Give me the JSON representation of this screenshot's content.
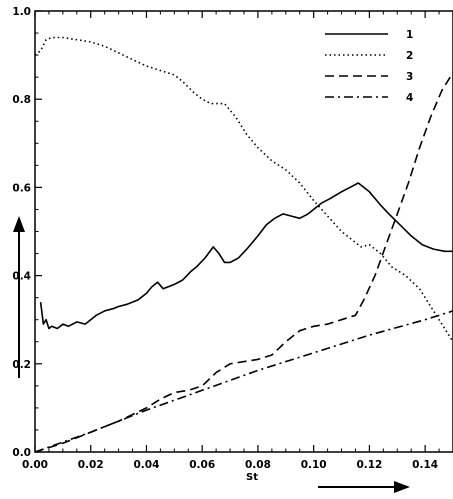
{
  "chart_data": {
    "type": "line",
    "title": "",
    "xlabel": "St",
    "ylabel": "",
    "xlim": [
      0.0,
      0.15
    ],
    "ylim": [
      0.0,
      1.0
    ],
    "x_ticks": [
      "0.00",
      "0.02",
      "0.04",
      "0.06",
      "0.08",
      "0.10",
      "0.12",
      "0.14"
    ],
    "y_ticks": [
      "0.0",
      "0.2",
      "0.4",
      "0.6",
      "0.8",
      "1.0"
    ],
    "legend_position": "top-right",
    "grid": false,
    "series": [
      {
        "name": "1",
        "style": "solid",
        "color": "#000000",
        "points": [
          [
            0.002,
            0.34
          ],
          [
            0.003,
            0.29
          ],
          [
            0.004,
            0.3
          ],
          [
            0.005,
            0.28
          ],
          [
            0.006,
            0.285
          ],
          [
            0.008,
            0.28
          ],
          [
            0.01,
            0.29
          ],
          [
            0.012,
            0.285
          ],
          [
            0.015,
            0.295
          ],
          [
            0.018,
            0.29
          ],
          [
            0.02,
            0.3
          ],
          [
            0.022,
            0.31
          ],
          [
            0.025,
            0.32
          ],
          [
            0.028,
            0.325
          ],
          [
            0.03,
            0.33
          ],
          [
            0.033,
            0.335
          ],
          [
            0.035,
            0.34
          ],
          [
            0.037,
            0.345
          ],
          [
            0.04,
            0.36
          ],
          [
            0.042,
            0.375
          ],
          [
            0.044,
            0.385
          ],
          [
            0.046,
            0.37
          ],
          [
            0.05,
            0.38
          ],
          [
            0.053,
            0.39
          ],
          [
            0.056,
            0.41
          ],
          [
            0.058,
            0.42
          ],
          [
            0.061,
            0.44
          ],
          [
            0.064,
            0.465
          ],
          [
            0.066,
            0.45
          ],
          [
            0.068,
            0.43
          ],
          [
            0.07,
            0.43
          ],
          [
            0.073,
            0.44
          ],
          [
            0.076,
            0.46
          ],
          [
            0.08,
            0.49
          ],
          [
            0.083,
            0.515
          ],
          [
            0.086,
            0.53
          ],
          [
            0.089,
            0.54
          ],
          [
            0.092,
            0.535
          ],
          [
            0.095,
            0.53
          ],
          [
            0.098,
            0.54
          ],
          [
            0.1,
            0.55
          ],
          [
            0.103,
            0.565
          ],
          [
            0.106,
            0.575
          ],
          [
            0.11,
            0.59
          ],
          [
            0.113,
            0.6
          ],
          [
            0.116,
            0.61
          ],
          [
            0.12,
            0.59
          ],
          [
            0.124,
            0.56
          ],
          [
            0.127,
            0.54
          ],
          [
            0.131,
            0.515
          ],
          [
            0.135,
            0.49
          ],
          [
            0.139,
            0.47
          ],
          [
            0.143,
            0.46
          ],
          [
            0.147,
            0.455
          ],
          [
            0.15,
            0.455
          ]
        ]
      },
      {
        "name": "2",
        "style": "dotted",
        "color": "#000000",
        "points": [
          [
            0.0,
            0.9
          ],
          [
            0.002,
            0.91
          ],
          [
            0.004,
            0.935
          ],
          [
            0.006,
            0.94
          ],
          [
            0.01,
            0.94
          ],
          [
            0.015,
            0.935
          ],
          [
            0.02,
            0.93
          ],
          [
            0.025,
            0.92
          ],
          [
            0.03,
            0.905
          ],
          [
            0.035,
            0.89
          ],
          [
            0.04,
            0.875
          ],
          [
            0.045,
            0.865
          ],
          [
            0.05,
            0.855
          ],
          [
            0.053,
            0.84
          ],
          [
            0.057,
            0.815
          ],
          [
            0.06,
            0.8
          ],
          [
            0.063,
            0.79
          ],
          [
            0.068,
            0.79
          ],
          [
            0.072,
            0.76
          ],
          [
            0.076,
            0.72
          ],
          [
            0.08,
            0.69
          ],
          [
            0.085,
            0.66
          ],
          [
            0.09,
            0.64
          ],
          [
            0.095,
            0.61
          ],
          [
            0.1,
            0.57
          ],
          [
            0.105,
            0.535
          ],
          [
            0.11,
            0.5
          ],
          [
            0.114,
            0.48
          ],
          [
            0.117,
            0.465
          ],
          [
            0.12,
            0.47
          ],
          [
            0.124,
            0.45
          ],
          [
            0.128,
            0.42
          ],
          [
            0.133,
            0.4
          ],
          [
            0.138,
            0.37
          ],
          [
            0.142,
            0.33
          ],
          [
            0.146,
            0.29
          ],
          [
            0.15,
            0.25
          ]
        ]
      },
      {
        "name": "3",
        "style": "dashed",
        "color": "#000000",
        "points": [
          [
            0.0,
            0.0
          ],
          [
            0.01,
            0.02
          ],
          [
            0.02,
            0.045
          ],
          [
            0.03,
            0.07
          ],
          [
            0.04,
            0.1
          ],
          [
            0.045,
            0.12
          ],
          [
            0.05,
            0.135
          ],
          [
            0.055,
            0.14
          ],
          [
            0.06,
            0.15
          ],
          [
            0.065,
            0.18
          ],
          [
            0.07,
            0.2
          ],
          [
            0.075,
            0.205
          ],
          [
            0.08,
            0.21
          ],
          [
            0.085,
            0.22
          ],
          [
            0.09,
            0.25
          ],
          [
            0.095,
            0.275
          ],
          [
            0.1,
            0.285
          ],
          [
            0.105,
            0.29
          ],
          [
            0.11,
            0.3
          ],
          [
            0.115,
            0.31
          ],
          [
            0.118,
            0.345
          ],
          [
            0.122,
            0.4
          ],
          [
            0.126,
            0.47
          ],
          [
            0.13,
            0.54
          ],
          [
            0.134,
            0.61
          ],
          [
            0.138,
            0.69
          ],
          [
            0.142,
            0.76
          ],
          [
            0.146,
            0.82
          ],
          [
            0.15,
            0.86
          ]
        ]
      },
      {
        "name": "4",
        "style": "dash-dot",
        "color": "#000000",
        "points": [
          [
            0.0,
            0.0
          ],
          [
            0.02,
            0.045
          ],
          [
            0.04,
            0.095
          ],
          [
            0.06,
            0.14
          ],
          [
            0.08,
            0.185
          ],
          [
            0.1,
            0.225
          ],
          [
            0.12,
            0.265
          ],
          [
            0.14,
            0.3
          ],
          [
            0.15,
            0.32
          ]
        ]
      }
    ]
  }
}
